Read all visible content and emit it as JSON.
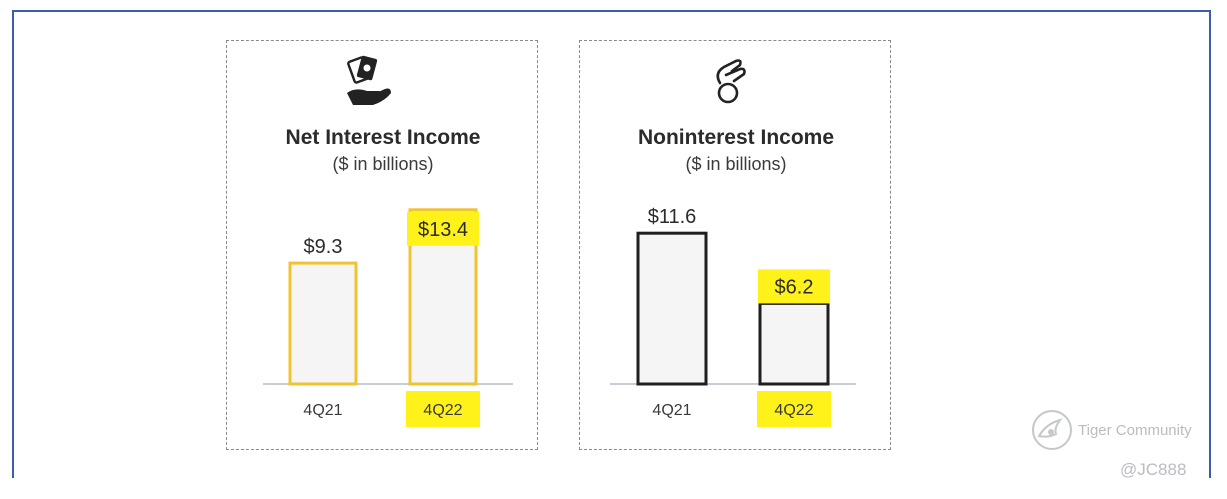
{
  "chart_data": [
    {
      "type": "bar",
      "title": "Net Interest Income",
      "subtitle": "($ in billions)",
      "categories": [
        "4Q21",
        "4Q22"
      ],
      "values": [
        9.3,
        13.4
      ],
      "labels": [
        "$9.3",
        "$13.4"
      ],
      "highlighted": [
        "4Q22"
      ],
      "icon": "hand-holding-money-icon",
      "bar_color": "#f0c331"
    },
    {
      "type": "bar",
      "title": "Noninterest Income",
      "subtitle": "($ in billions)",
      "categories": [
        "4Q21",
        "4Q22"
      ],
      "values": [
        11.6,
        6.2
      ],
      "labels": [
        "$11.6",
        "$6.2"
      ],
      "highlighted": [
        "4Q22"
      ],
      "icon": "hand-holding-coin-icon",
      "bar_color": "#1f1f1f"
    }
  ],
  "watermark": {
    "brand": "Tiger Community",
    "handle": "@JC888"
  },
  "colors": {
    "frame": "#3a5fa8",
    "highlight": "#fff21a",
    "bar_fill": "#f5f5f5",
    "baseline": "#c9ced6"
  }
}
